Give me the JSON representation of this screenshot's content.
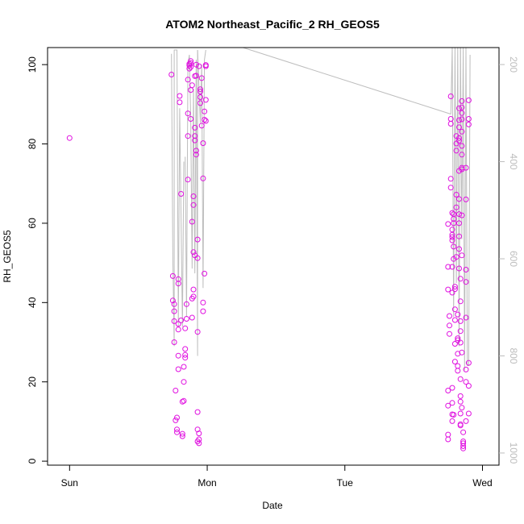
{
  "chart_data": {
    "type": "scatter",
    "title": "ATOM2 Northeast_Pacific_2 RH_GEOS5",
    "xlabel": "Date",
    "ylabel": "RH_GEOS5",
    "x_ticks": [
      {
        "label": "Sun",
        "day": 0
      },
      {
        "label": "Mon",
        "day": 1
      },
      {
        "label": "Tue",
        "day": 2
      },
      {
        "label": "Wed",
        "day": 3
      }
    ],
    "xlim_days": [
      -0.16,
      3.12
    ],
    "ylim": [
      -1,
      104.3
    ],
    "y_ticks": [
      0,
      20,
      40,
      60,
      80,
      100
    ],
    "y2_ticks": [
      200,
      400,
      600,
      800,
      1000
    ],
    "y2lim": [
      1025,
      165
    ],
    "point_color": "#e010e0",
    "line_color": "#bdbdbd",
    "series": [
      {
        "name": "",
        "points": [
          [
            0.0,
            81.5
          ],
          [
            0.74,
            97.5
          ],
          [
            0.75,
            46.7
          ],
          [
            0.75,
            40.5
          ],
          [
            0.76,
            37.8
          ],
          [
            0.76,
            35.3
          ],
          [
            0.76,
            30.0
          ],
          [
            0.76,
            39.6
          ],
          [
            0.77,
            17.8
          ],
          [
            0.77,
            10.3
          ],
          [
            0.78,
            8.0
          ],
          [
            0.78,
            7.3
          ],
          [
            0.78,
            11.0
          ],
          [
            0.79,
            45.9
          ],
          [
            0.79,
            44.8
          ],
          [
            0.79,
            34.6
          ],
          [
            0.79,
            33.2
          ],
          [
            0.79,
            26.6
          ],
          [
            0.79,
            23.2
          ],
          [
            0.8,
            92.1
          ],
          [
            0.8,
            90.5
          ],
          [
            0.81,
            67.4
          ],
          [
            0.81,
            35.5
          ],
          [
            0.82,
            15.0
          ],
          [
            0.82,
            6.9
          ],
          [
            0.82,
            6.3
          ],
          [
            0.83,
            20.0
          ],
          [
            0.83,
            23.8
          ],
          [
            0.83,
            15.2
          ],
          [
            0.84,
            26.1
          ],
          [
            0.84,
            26.8
          ],
          [
            0.84,
            28.3
          ],
          [
            0.84,
            33.5
          ],
          [
            0.85,
            35.9
          ],
          [
            0.85,
            39.6
          ],
          [
            0.86,
            87.7
          ],
          [
            0.86,
            82.0
          ],
          [
            0.86,
            96.2
          ],
          [
            0.86,
            71.0
          ],
          [
            0.87,
            99.0
          ],
          [
            0.87,
            99.8
          ],
          [
            0.87,
            100.2
          ],
          [
            0.88,
            100.9
          ],
          [
            0.88,
            100.4
          ],
          [
            0.88,
            99.4
          ],
          [
            0.88,
            93.6
          ],
          [
            0.88,
            86.3
          ],
          [
            0.89,
            94.8
          ],
          [
            0.89,
            60.4
          ],
          [
            0.89,
            41.0
          ],
          [
            0.89,
            36.2
          ],
          [
            0.9,
            43.3
          ],
          [
            0.9,
            41.5
          ],
          [
            0.9,
            66.8
          ],
          [
            0.9,
            64.6
          ],
          [
            0.9,
            52.7
          ],
          [
            0.91,
            51.9
          ],
          [
            0.91,
            84.1
          ],
          [
            0.91,
            82.0
          ],
          [
            0.91,
            80.9
          ],
          [
            0.91,
            97.1
          ],
          [
            0.92,
            100.0
          ],
          [
            0.92,
            97.2
          ],
          [
            0.92,
            77.3
          ],
          [
            0.92,
            78.3
          ],
          [
            0.93,
            55.9
          ],
          [
            0.93,
            51.2
          ],
          [
            0.93,
            32.6
          ],
          [
            0.93,
            12.4
          ],
          [
            0.93,
            8.0
          ],
          [
            0.93,
            5.0
          ],
          [
            0.94,
            4.5
          ],
          [
            0.94,
            5.5
          ],
          [
            0.94,
            7.0
          ],
          [
            0.94,
            99.6
          ],
          [
            0.95,
            93.8
          ],
          [
            0.95,
            93.2
          ],
          [
            0.95,
            91.8
          ],
          [
            0.95,
            90.3
          ],
          [
            0.96,
            96.6
          ],
          [
            0.96,
            84.6
          ],
          [
            0.97,
            80.2
          ],
          [
            0.97,
            71.3
          ],
          [
            0.97,
            40.0
          ],
          [
            0.97,
            37.8
          ],
          [
            0.98,
            88.2
          ],
          [
            0.98,
            86.1
          ],
          [
            0.98,
            47.3
          ],
          [
            0.99,
            99.6
          ],
          [
            0.99,
            99.9
          ],
          [
            0.99,
            91.1
          ],
          [
            0.99,
            85.8
          ],
          [
            2.75,
            59.8
          ],
          [
            2.75,
            49.0
          ],
          [
            2.75,
            43.3
          ],
          [
            2.76,
            36.6
          ],
          [
            2.76,
            34.2
          ],
          [
            2.76,
            32.1
          ],
          [
            2.75,
            17.8
          ],
          [
            2.75,
            14.0
          ],
          [
            2.75,
            6.7
          ],
          [
            2.75,
            5.5
          ],
          [
            2.77,
            92.0
          ],
          [
            2.77,
            86.3
          ],
          [
            2.77,
            85.1
          ],
          [
            2.77,
            71.2
          ],
          [
            2.77,
            69.0
          ],
          [
            2.78,
            62.6
          ],
          [
            2.78,
            58.4
          ],
          [
            2.78,
            57.1
          ],
          [
            2.78,
            56.5
          ],
          [
            2.78,
            55.7
          ],
          [
            2.78,
            49.0
          ],
          [
            2.78,
            42.5
          ],
          [
            2.79,
            62.3
          ],
          [
            2.79,
            61.1
          ],
          [
            2.79,
            60.0
          ],
          [
            2.79,
            54.1
          ],
          [
            2.79,
            51.0
          ],
          [
            2.8,
            44.0
          ],
          [
            2.8,
            43.4
          ],
          [
            2.8,
            38.3
          ],
          [
            2.8,
            35.6
          ],
          [
            2.8,
            29.6
          ],
          [
            2.8,
            25.1
          ],
          [
            2.78,
            18.5
          ],
          [
            2.78,
            14.7
          ],
          [
            2.78,
            11.8
          ],
          [
            2.78,
            10.1
          ],
          [
            2.79,
            11.7
          ],
          [
            2.81,
            82.0
          ],
          [
            2.81,
            80.1
          ],
          [
            2.81,
            78.3
          ],
          [
            2.81,
            67.2
          ],
          [
            2.81,
            64.0
          ],
          [
            2.81,
            51.5
          ],
          [
            2.82,
            37.0
          ],
          [
            2.82,
            31.0
          ],
          [
            2.82,
            30.5
          ],
          [
            2.82,
            27.1
          ],
          [
            2.82,
            24.0
          ],
          [
            2.82,
            22.8
          ],
          [
            2.83,
            89.0
          ],
          [
            2.83,
            86.0
          ],
          [
            2.83,
            84.2
          ],
          [
            2.83,
            81.5
          ],
          [
            2.83,
            80.8
          ],
          [
            2.83,
            73.2
          ],
          [
            2.83,
            66.1
          ],
          [
            2.83,
            62.3
          ],
          [
            2.83,
            60.0
          ],
          [
            2.83,
            56.7
          ],
          [
            2.83,
            53.5
          ],
          [
            2.83,
            48.6
          ],
          [
            2.84,
            46.0
          ],
          [
            2.84,
            40.3
          ],
          [
            2.84,
            35.3
          ],
          [
            2.84,
            32.8
          ],
          [
            2.84,
            29.9
          ],
          [
            2.84,
            20.7
          ],
          [
            2.84,
            16.4
          ],
          [
            2.84,
            15.0
          ],
          [
            2.84,
            12.0
          ],
          [
            2.84,
            9.3
          ],
          [
            2.84,
            9.0
          ],
          [
            2.85,
            90.8
          ],
          [
            2.85,
            89.2
          ],
          [
            2.85,
            87.8
          ],
          [
            2.85,
            86.2
          ],
          [
            2.85,
            83.1
          ],
          [
            2.85,
            79.5
          ],
          [
            2.85,
            77.3
          ],
          [
            2.85,
            74.0
          ],
          [
            2.85,
            73.6
          ],
          [
            2.85,
            62.0
          ],
          [
            2.85,
            51.9
          ],
          [
            2.85,
            27.4
          ],
          [
            2.85,
            13.5
          ],
          [
            2.86,
            7.3
          ],
          [
            2.86,
            5.0
          ],
          [
            2.86,
            4.5
          ],
          [
            2.86,
            3.8
          ],
          [
            2.86,
            3.2
          ],
          [
            2.88,
            74.0
          ],
          [
            2.88,
            66.0
          ],
          [
            2.88,
            48.3
          ],
          [
            2.88,
            45.2
          ],
          [
            2.88,
            36.2
          ],
          [
            2.88,
            23.1
          ],
          [
            2.88,
            20.0
          ],
          [
            2.88,
            10.1
          ],
          [
            2.9,
            91.0
          ],
          [
            2.9,
            86.3
          ],
          [
            2.9,
            84.9
          ],
          [
            2.9,
            24.8
          ],
          [
            2.9,
            19.0
          ],
          [
            2.9,
            12.0
          ]
        ]
      }
    ],
    "line_segments": [
      [
        [
          0.74,
          178
        ],
        [
          0.75,
          600
        ],
        [
          0.76,
          780
        ],
        [
          0.76,
          170
        ],
        [
          0.78,
          170
        ],
        [
          0.79,
          740
        ],
        [
          0.8,
          290
        ],
        [
          0.82,
          740
        ],
        [
          0.83,
          400
        ]
      ],
      [
        [
          0.84,
          390
        ],
        [
          0.85,
          720
        ],
        [
          0.86,
          200
        ],
        [
          0.87,
          180
        ],
        [
          0.88,
          310
        ],
        [
          0.89,
          620
        ],
        [
          0.9,
          250
        ],
        [
          0.91,
          630
        ],
        [
          0.92,
          190
        ],
        [
          0.93,
          800
        ],
        [
          0.93,
          170
        ]
      ],
      [
        [
          0.93,
          170
        ],
        [
          0.95,
          320
        ],
        [
          0.96,
          200
        ],
        [
          0.97,
          660
        ],
        [
          0.98,
          190
        ],
        [
          0.99,
          170
        ]
      ],
      [
        [
          1.0,
          165
        ],
        [
          1.26,
          165
        ],
        [
          2.77,
          302
        ]
      ],
      [
        [
          2.77,
          302
        ],
        [
          2.78,
          165
        ],
        [
          2.79,
          720
        ],
        [
          2.8,
          165
        ],
        [
          2.81,
          650
        ],
        [
          2.82,
          165
        ],
        [
          2.83,
          780
        ],
        [
          2.84,
          165
        ]
      ],
      [
        [
          2.84,
          165
        ],
        [
          2.85,
          560
        ],
        [
          2.86,
          165
        ],
        [
          2.87,
          830
        ],
        [
          2.88,
          165
        ],
        [
          2.89,
          820
        ],
        [
          2.9,
          820
        ],
        [
          2.91,
          180
        ]
      ]
    ]
  }
}
